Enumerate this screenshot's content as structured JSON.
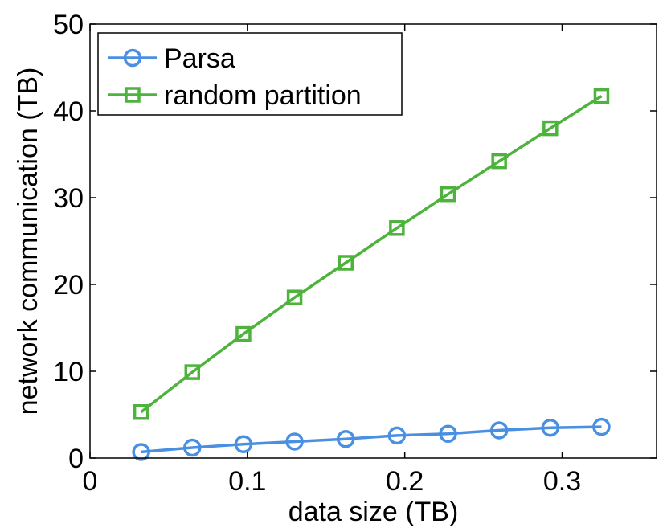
{
  "chart_data": {
    "type": "line",
    "xlabel": "data size (TB)",
    "ylabel": "network communication (TB)",
    "xlim": [
      0,
      0.36
    ],
    "ylim": [
      0,
      50
    ],
    "xticks": [
      0,
      0.1,
      0.2,
      0.3
    ],
    "xtick_labels": [
      "0",
      "0.1",
      "0.2",
      "0.3"
    ],
    "yticks": [
      0,
      10,
      20,
      30,
      40,
      50
    ],
    "ytick_labels": [
      "0",
      "10",
      "20",
      "30",
      "40",
      "50"
    ],
    "grid": false,
    "legend_position": "top-left",
    "x": [
      0.0325,
      0.065,
      0.0975,
      0.13,
      0.1625,
      0.195,
      0.2275,
      0.26,
      0.2925,
      0.325
    ],
    "series": [
      {
        "name": "Parsa",
        "marker": "circle",
        "color": "#4a90e2",
        "values": [
          0.7,
          1.2,
          1.6,
          1.9,
          2.2,
          2.6,
          2.8,
          3.2,
          3.5,
          3.6
        ]
      },
      {
        "name": "random partition",
        "marker": "square",
        "color": "#4db33d",
        "values": [
          5.3,
          9.9,
          14.3,
          18.5,
          22.5,
          26.5,
          30.4,
          34.2,
          38.0,
          41.7
        ]
      }
    ]
  }
}
